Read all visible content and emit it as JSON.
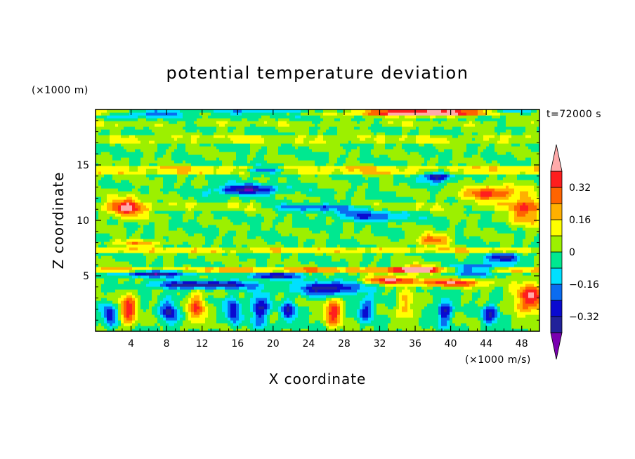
{
  "chart_data": {
    "type": "heatmap",
    "title": "potential temperature deviation",
    "xlabel": "X coordinate",
    "ylabel": "Z coordinate",
    "x_unit": "(×1000 m/s)",
    "y_unit": "(×1000 m)",
    "time_label": "t=72000 s",
    "xlim": [
      0,
      50
    ],
    "ylim": [
      0,
      20
    ],
    "x_ticks": [
      "4",
      "8",
      "12",
      "16",
      "20",
      "24",
      "28",
      "32",
      "36",
      "40",
      "44",
      "48"
    ],
    "y_ticks": [
      "5",
      "10",
      "15"
    ],
    "colorbar": {
      "levels": [
        -0.4,
        -0.32,
        -0.24,
        -0.16,
        -0.08,
        0,
        0.08,
        0.16,
        0.24,
        0.32,
        0.4
      ],
      "colors": [
        "#7a00b0",
        "#22229a",
        "#0a0ad0",
        "#0a6cf0",
        "#00e0ff",
        "#00e890",
        "#9cf000",
        "#ffff00",
        "#ffb000",
        "#ff6400",
        "#ff1e1e",
        "#ffaaaa"
      ],
      "tick_labels": [
        "0.32",
        "0.16",
        "0",
        "−0.16",
        "−0.32"
      ],
      "tick_values": [
        0.32,
        0.16,
        0,
        -0.16,
        -0.32
      ],
      "extend": "both"
    },
    "features": [
      {
        "type": "band",
        "y0": 19.6,
        "y1": 20,
        "v": 0.22
      },
      {
        "type": "band",
        "y0": 18.6,
        "y1": 19.1,
        "v": 0.05
      },
      {
        "type": "band",
        "y0": 17.0,
        "y1": 17.6,
        "v": 0.08
      },
      {
        "type": "band",
        "y0": 14.3,
        "y1": 15.0,
        "v": 0.15
      },
      {
        "type": "band",
        "y0": 11.0,
        "y1": 11.6,
        "v": 0.07
      },
      {
        "type": "band",
        "y0": 7.0,
        "y1": 7.5,
        "v": 0.14
      },
      {
        "type": "band",
        "y0": 5.4,
        "y1": 5.8,
        "v": 0.22
      },
      {
        "type": "blob",
        "x": 7,
        "z": 19.7,
        "rx": 6,
        "rz": 0.3,
        "v": -0.38
      },
      {
        "type": "blob",
        "x": 20,
        "z": 19.8,
        "rx": 8,
        "rz": 0.25,
        "v": -0.36
      },
      {
        "type": "blob",
        "x": 37,
        "z": 19.7,
        "rx": 5,
        "rz": 0.3,
        "v": 0.36
      },
      {
        "type": "blob",
        "x": 47,
        "z": 19.8,
        "rx": 3,
        "rz": 0.25,
        "v": -0.36
      },
      {
        "type": "blob",
        "x": 17,
        "z": 12.8,
        "rx": 3.5,
        "rz": 0.45,
        "v": -0.4
      },
      {
        "type": "blob",
        "x": 19,
        "z": 14.5,
        "rx": 2.5,
        "rz": 0.35,
        "v": -0.32
      },
      {
        "type": "blob",
        "x": 38.5,
        "z": 14.0,
        "rx": 1.6,
        "rz": 0.5,
        "v": -0.4
      },
      {
        "type": "blob",
        "x": 31,
        "z": 10.4,
        "rx": 4,
        "rz": 0.5,
        "v": -0.24
      },
      {
        "type": "blob",
        "x": 25,
        "z": 11.2,
        "rx": 5,
        "rz": 0.35,
        "v": -0.3
      },
      {
        "type": "blob",
        "x": 3.5,
        "z": 11.2,
        "rx": 2,
        "rz": 0.9,
        "v": 0.36
      },
      {
        "type": "blob",
        "x": 44.5,
        "z": 12.5,
        "rx": 3,
        "rz": 0.6,
        "v": 0.38
      },
      {
        "type": "blob",
        "x": 48.5,
        "z": 11.0,
        "rx": 1.8,
        "rz": 1.3,
        "v": 0.3
      },
      {
        "type": "blob",
        "x": 38,
        "z": 8.3,
        "rx": 2,
        "rz": 0.5,
        "v": 0.28
      },
      {
        "type": "blob",
        "x": 5,
        "z": 8.0,
        "rx": 3,
        "rz": 0.3,
        "v": 0.22
      },
      {
        "type": "blob",
        "x": 46,
        "z": 6.7,
        "rx": 2,
        "rz": 0.4,
        "v": -0.34
      },
      {
        "type": "blob",
        "x": 7,
        "z": 5.3,
        "rx": 4,
        "rz": 0.35,
        "v": -0.38
      },
      {
        "type": "blob",
        "x": 20,
        "z": 5.0,
        "rx": 3,
        "rz": 0.3,
        "v": -0.34
      },
      {
        "type": "blob",
        "x": 36,
        "z": 5.6,
        "rx": 2.5,
        "rz": 0.35,
        "v": 0.4
      },
      {
        "type": "blob",
        "x": 43,
        "z": 5.6,
        "rx": 3,
        "rz": 0.45,
        "v": -0.4
      },
      {
        "type": "blob",
        "x": 12,
        "z": 4.2,
        "rx": 6,
        "rz": 0.35,
        "v": -0.4
      },
      {
        "type": "blob",
        "x": 26.5,
        "z": 3.9,
        "rx": 3.5,
        "rz": 0.6,
        "v": -0.4
      },
      {
        "type": "blob",
        "x": 33,
        "z": 4.6,
        "rx": 3,
        "rz": 0.35,
        "v": 0.4
      },
      {
        "type": "blob",
        "x": 40,
        "z": 4.4,
        "rx": 4,
        "rz": 0.35,
        "v": 0.36
      },
      {
        "type": "blob",
        "x": 49,
        "z": 3.0,
        "rx": 1.8,
        "rz": 1.3,
        "v": 0.4
      },
      {
        "type": "blob",
        "x": 3.7,
        "z": 2.0,
        "rx": 0.9,
        "rz": 1.5,
        "v": 0.36
      },
      {
        "type": "blob",
        "x": 1.6,
        "z": 1.5,
        "rx": 0.8,
        "rz": 1.0,
        "v": -0.3
      },
      {
        "type": "blob",
        "x": 8.3,
        "z": 1.8,
        "rx": 0.9,
        "rz": 1.2,
        "v": -0.32
      },
      {
        "type": "blob",
        "x": 11.4,
        "z": 2.2,
        "rx": 1.0,
        "rz": 1.4,
        "v": 0.3
      },
      {
        "type": "blob",
        "x": 15.5,
        "z": 2.0,
        "rx": 0.8,
        "rz": 1.2,
        "v": -0.32
      },
      {
        "type": "blob",
        "x": 18.5,
        "z": 2.0,
        "rx": 1.0,
        "rz": 1.3,
        "v": -0.34
      },
      {
        "type": "blob",
        "x": 21.8,
        "z": 1.8,
        "rx": 0.8,
        "rz": 1.0,
        "v": -0.3
      },
      {
        "type": "blob",
        "x": 26.8,
        "z": 1.8,
        "rx": 0.9,
        "rz": 1.3,
        "v": 0.38
      },
      {
        "type": "blob",
        "x": 30.5,
        "z": 2.0,
        "rx": 0.9,
        "rz": 1.0,
        "v": -0.28
      },
      {
        "type": "blob",
        "x": 35,
        "z": 2.3,
        "rx": 0.9,
        "rz": 1.2,
        "v": 0.22
      },
      {
        "type": "blob",
        "x": 39.3,
        "z": 1.8,
        "rx": 0.8,
        "rz": 1.1,
        "v": -0.34
      },
      {
        "type": "blob",
        "x": 44.5,
        "z": 1.6,
        "rx": 0.9,
        "rz": 0.9,
        "v": -0.3
      }
    ]
  }
}
